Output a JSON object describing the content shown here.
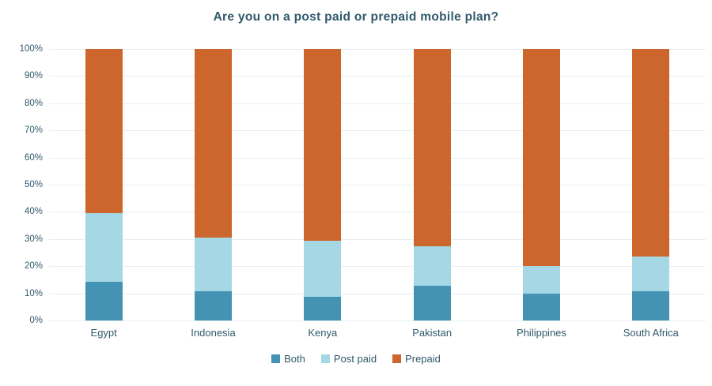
{
  "title": "Are you on a post paid or prepaid mobile plan?",
  "colors": {
    "both": "#4492B4",
    "post_paid": "#A5D8E4",
    "prepaid": "#CD662D",
    "title_text": "#31596B",
    "axis_text": "#31596B",
    "gridline": "#E7EFF1",
    "background": "#FFFFFF"
  },
  "chart_data": {
    "type": "bar",
    "stacked": true,
    "title": "Are you on a post paid or prepaid mobile plan?",
    "xlabel": "",
    "ylabel": "",
    "categories": [
      "Egypt",
      "Indonesia",
      "Kenya",
      "Pakistan",
      "Philippines",
      "South Africa"
    ],
    "series": [
      {
        "name": "Both",
        "color": "#4492B4",
        "values": [
          14.3,
          10.7,
          8.7,
          12.7,
          9.8,
          10.7
        ]
      },
      {
        "name": "Post paid",
        "color": "#A5D8E4",
        "values": [
          25.1,
          19.9,
          20.7,
          14.5,
          10.4,
          12.9
        ]
      },
      {
        "name": "Prepaid",
        "color": "#CD662D",
        "values": [
          60.6,
          69.4,
          70.6,
          72.8,
          79.8,
          76.4
        ]
      }
    ],
    "ylim": [
      0,
      100
    ],
    "ytick_step": 10,
    "ytick_labels": [
      "0%",
      "10%",
      "20%",
      "30%",
      "40%",
      "50%",
      "60%",
      "70%",
      "80%",
      "90%",
      "100%"
    ],
    "grid": true,
    "legend_position": "bottom"
  }
}
